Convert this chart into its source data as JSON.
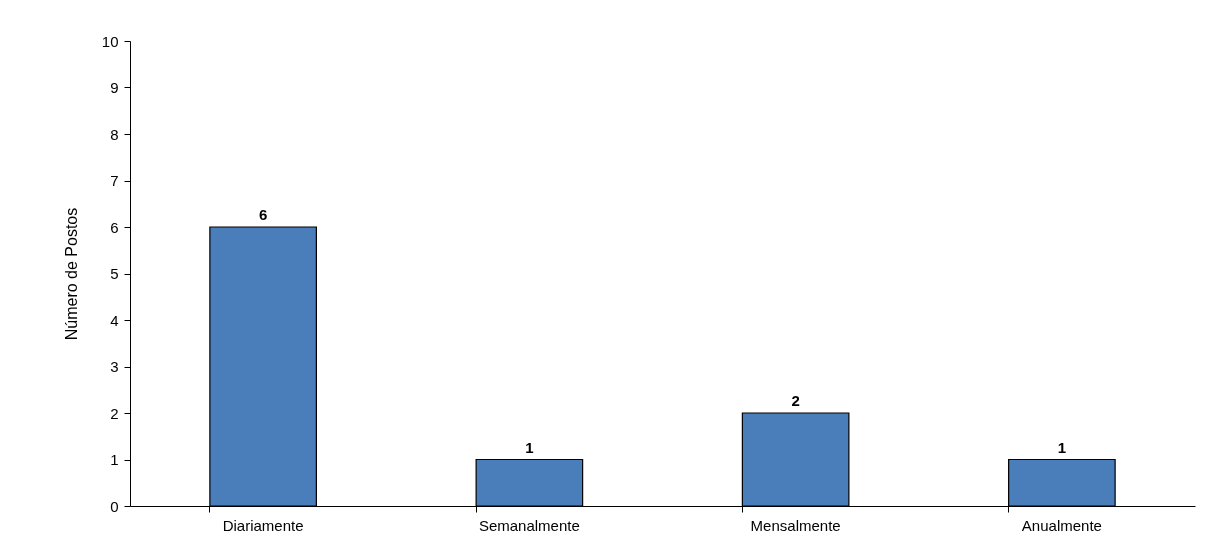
{
  "chart_data": {
    "type": "bar",
    "ylabel": "Número de Postos",
    "categories": [
      "Diariamente",
      "Semanalmente",
      "Mensalmente",
      "Anualmente"
    ],
    "values": [
      6,
      1,
      2,
      1
    ],
    "color": "#4a7ebb",
    "ylim": [
      0,
      10
    ],
    "yticks": [
      0,
      1,
      2,
      3,
      4,
      5,
      6,
      7,
      8,
      9,
      10
    ],
    "grid": false,
    "data_labels": true
  }
}
